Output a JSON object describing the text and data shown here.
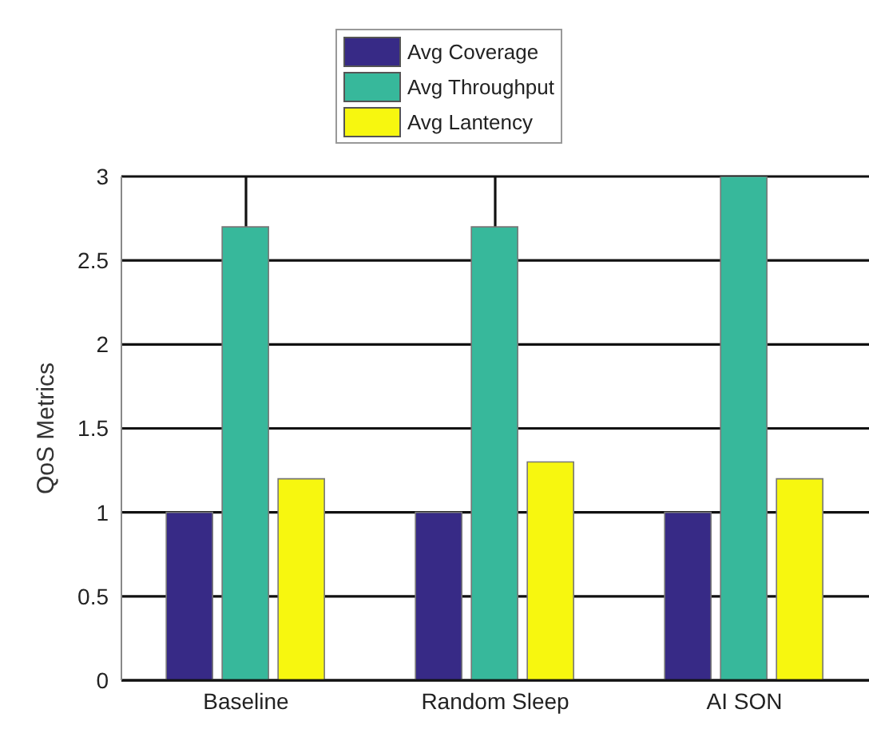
{
  "chart_data": {
    "type": "bar",
    "ylabel": "QoS Metrics",
    "categories": [
      "Baseline",
      "Random Sleep",
      "AI SON"
    ],
    "series": [
      {
        "name": "Avg Coverage",
        "color": "#372a86",
        "values": [
          1,
          1,
          1
        ]
      },
      {
        "name": "Avg Throughput",
        "color": "#37b89b",
        "values": [
          2.7,
          2.7,
          3
        ]
      },
      {
        "name": "Avg Lantency",
        "color": "#f7f70f",
        "values": [
          1.2,
          1.3,
          1.2
        ]
      }
    ],
    "ylim": [
      0,
      3
    ],
    "yticks": [
      0,
      0.5,
      1,
      1.5,
      2,
      2.5,
      3
    ],
    "grid": true,
    "legend": "top"
  }
}
